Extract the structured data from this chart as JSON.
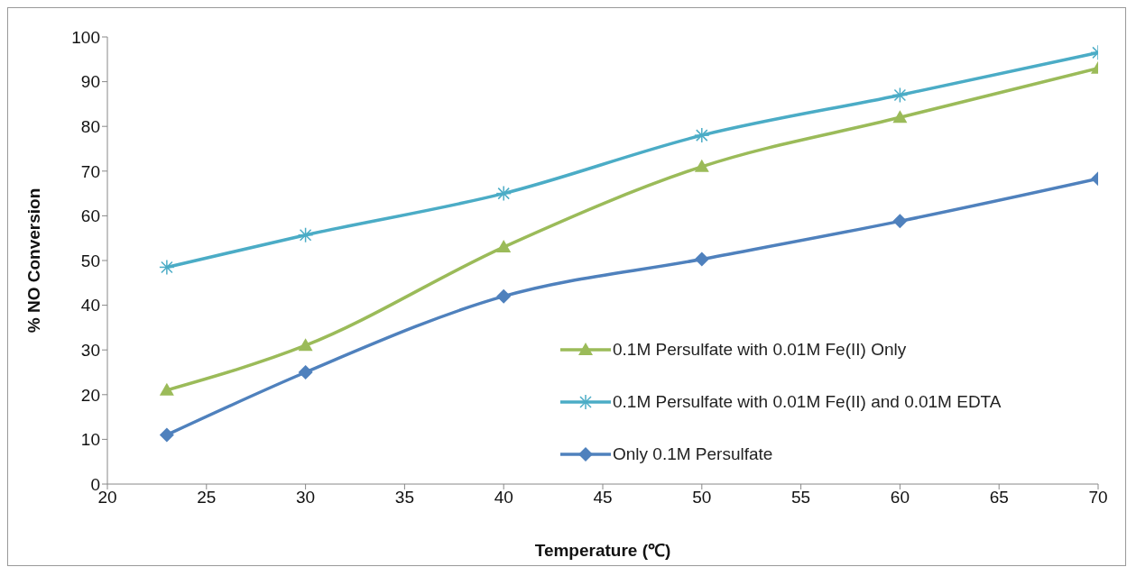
{
  "chart_data": {
    "type": "line",
    "xlabel": "Temperature (℃)",
    "ylabel": "% NO Conversion",
    "x": [
      23,
      30,
      40,
      50,
      60,
      70
    ],
    "xlim": [
      20,
      70
    ],
    "xticks": [
      20,
      25,
      30,
      35,
      40,
      45,
      50,
      55,
      60,
      65,
      70
    ],
    "ylim": [
      0,
      100
    ],
    "yticks": [
      0,
      10,
      20,
      30,
      40,
      50,
      60,
      70,
      80,
      90,
      100
    ],
    "grid": false,
    "legend": "bottom right",
    "line_style": "solid",
    "series": [
      {
        "name": "0.1M Persulfate with 0.01M Fe(II) Only",
        "color": "#9bbb59",
        "marker": "triangle",
        "values": [
          21,
          31,
          53,
          71,
          82,
          93
        ]
      },
      {
        "name": "0.1M Persulfate with 0.01M Fe(II) and 0.01M EDTA",
        "color": "#4bacc6",
        "marker": "cross",
        "values": [
          48.5,
          55.7,
          65,
          78,
          87,
          96.5
        ]
      },
      {
        "name": "Only 0.1M Persulfate",
        "color": "#4f81bd",
        "marker": "diamond",
        "values": [
          11,
          25,
          42,
          50.3,
          58.8,
          68.3
        ]
      }
    ]
  }
}
